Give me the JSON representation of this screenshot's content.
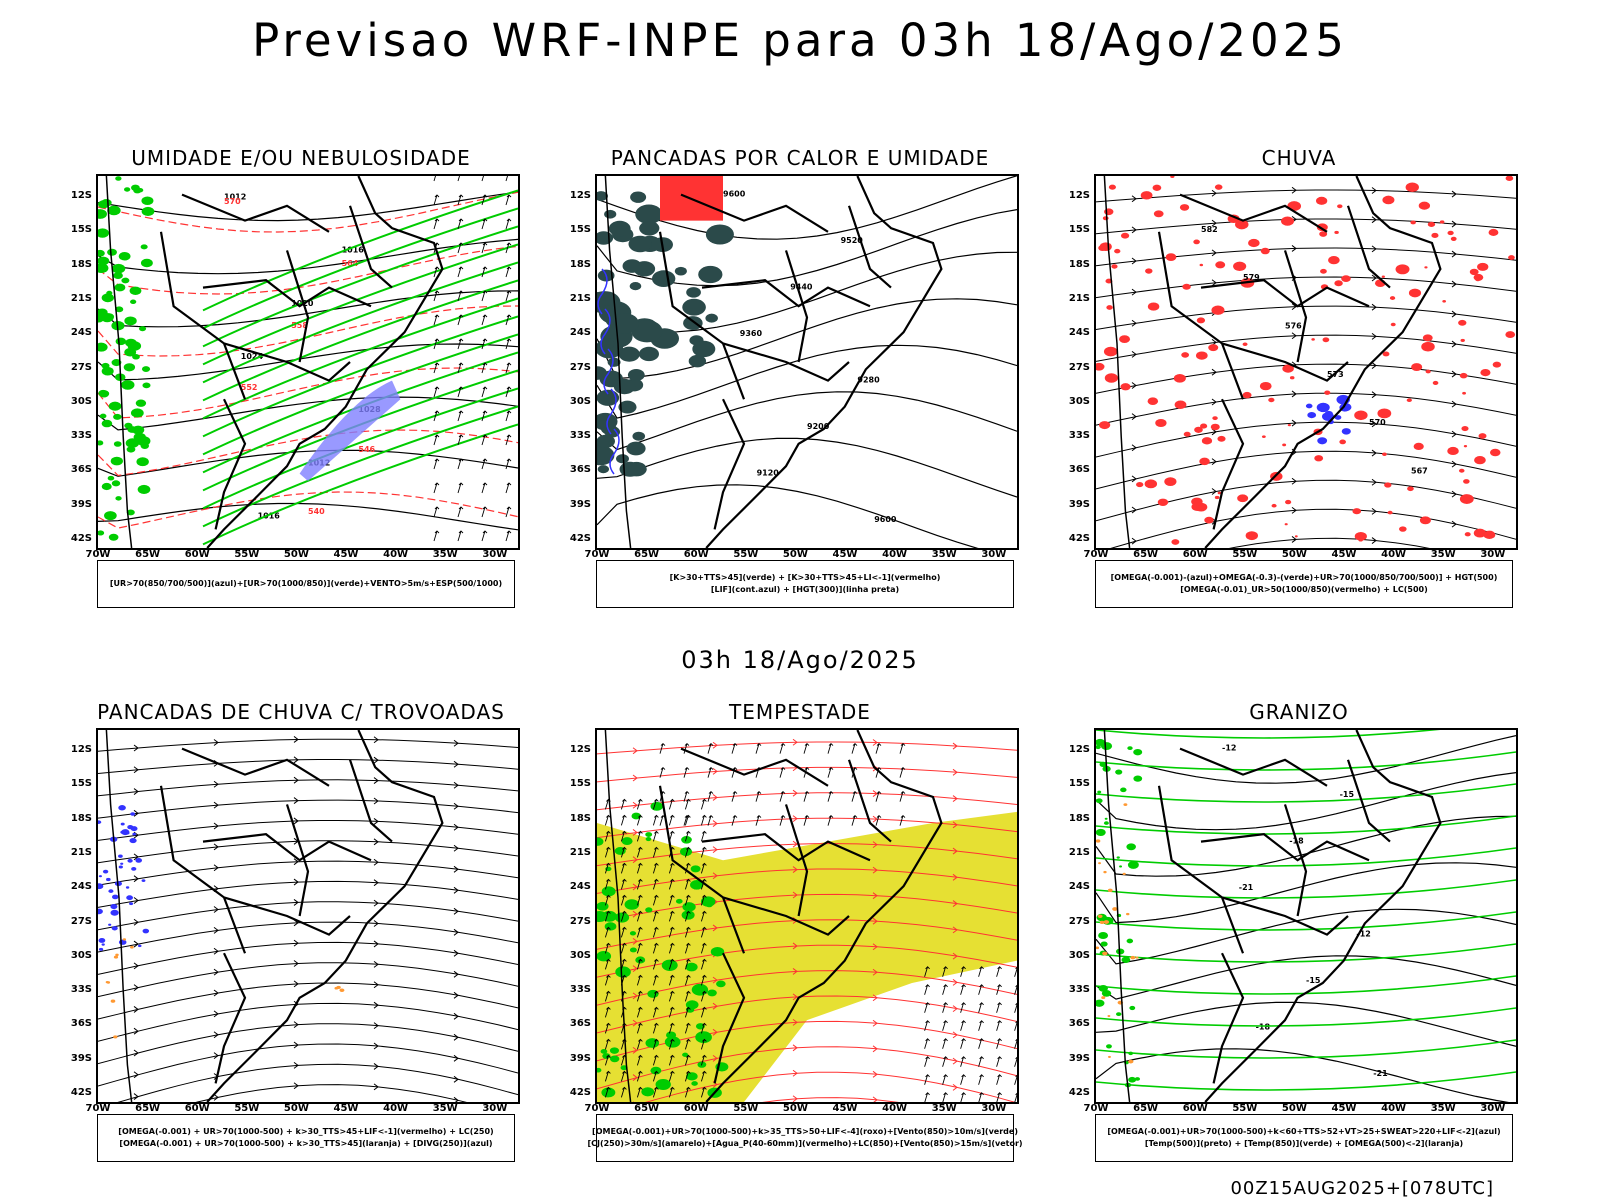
{
  "title": "Previsao WRF-INPE  para 03h 18/Ago/2025",
  "mid_title": "03h 18/Ago/2025",
  "footer": "00Z15AUG2025+[078UTC]",
  "lat_labels": [
    "12S",
    "15S",
    "18S",
    "21S",
    "24S",
    "27S",
    "30S",
    "33S",
    "36S",
    "39S",
    "42S"
  ],
  "lon_labels": [
    "70W",
    "65W",
    "60W",
    "55W",
    "50W",
    "45W",
    "40W",
    "35W",
    "30W"
  ],
  "panels": [
    {
      "title": "UMIDADE E/OU NEBULOSIDADE",
      "legend": [
        "[UR>70(850/700/500)](azul)+[UR>70(1000/850)](verde)+VENTO>5m/s+ESP(500/1000)"
      ],
      "contour_labels": [
        "1012",
        "1016",
        "1020",
        "1024",
        "1028",
        "570",
        "564",
        "558",
        "552",
        "546",
        "540"
      ],
      "colors": {
        "humid": "#00cc00",
        "thickness": "#ff3333",
        "high_humid": "#7f7fff"
      }
    },
    {
      "title": "PANCADAS POR CALOR E UMIDADE",
      "legend": [
        "[K>30+TTS>45](verde) + [K>30+TTS>45+LI<-1](vermelho)",
        "[LIF](cont.azul) + [HGT(300)](linha preta)"
      ],
      "contour_labels": [
        "9600",
        "9520",
        "9440",
        "9360",
        "9280",
        "9200",
        "9120"
      ],
      "colors": {
        "moist": "#2b4a4a",
        "unstable": "#ff3333",
        "lif": "#3333ff"
      }
    },
    {
      "title": "CHUVA",
      "legend": [
        "[OMEGA(-0.001)-(azul)+OMEGA(-0.3)-(verde)+UR>70(1000/850/700/500)] + HGT(500)",
        "[OMEGA(-0.01)_UR>50(1000/850)(vermelho) + LC(500)"
      ],
      "contour_labels": [
        "582",
        "579",
        "576",
        "573",
        "570",
        "567"
      ],
      "colors": {
        "rain": "#ff3333",
        "strong": "#3333ff"
      }
    },
    {
      "title": "PANCADAS DE CHUVA C/ TROVOADAS",
      "legend": [
        "[OMEGA(-0.001) + UR>70(1000-500) + k>30_TTS>45+LIF<-1](vermelho) + LC(250)",
        "[OMEGA(-0.001) + UR>70(1000-500) + k>30_TTS>45](laranja) + [DIVG(250)](azul)"
      ],
      "contour_labels": [],
      "colors": {
        "div": "#3333ff",
        "orange": "#ff9933"
      }
    },
    {
      "title": "TEMPESTADE",
      "legend": [
        "[OMEGA(-0.001)+UR>70(1000-500)+k>35_TTS>50+LIF<-4](roxo)+[Vento(850)>10m/s](verde)",
        "[CJ(250)>30m/s](amarelo)+[Agua_P(40-60mm)](vermelho)+LC(850)+[Vento(850)>15m/s](vetor)"
      ],
      "contour_labels": [],
      "colors": {
        "jet": "#e6e033",
        "wind": "#00cc00",
        "stream": "#ff3333"
      }
    },
    {
      "title": "GRANIZO",
      "legend": [
        "[OMEGA(-0.001)+UR>70(1000-500)+k<60+TTS>52+VT>25+SWEAT>220+LIF<-2](azul)",
        "[Temp(500)](preto) + [Temp(850)](verde) + [OMEGA(500)<-2](laranja)"
      ],
      "contour_labels": [
        "-12",
        "-15",
        "-18",
        "-21"
      ],
      "colors": {
        "t850": "#00cc00",
        "omega": "#ff9933"
      }
    }
  ]
}
